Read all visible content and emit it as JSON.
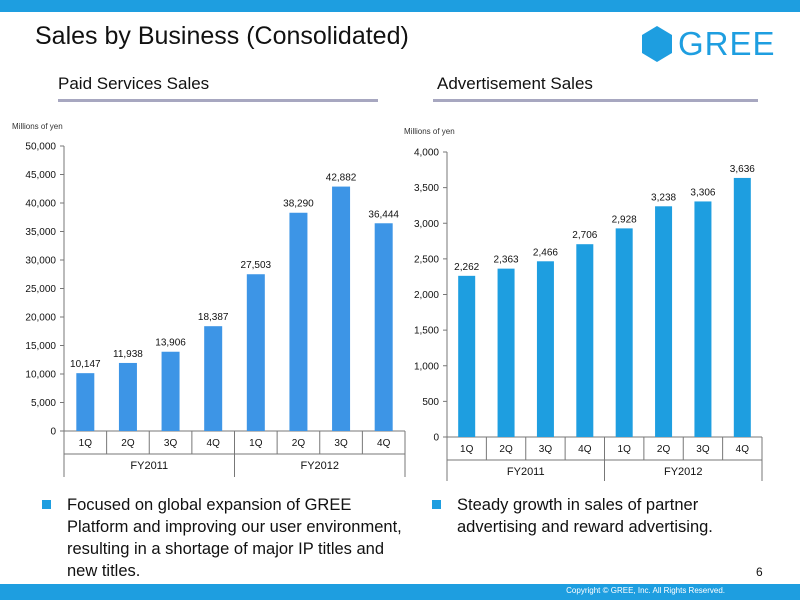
{
  "header": {
    "title": "Sales by Business (Consolidated)"
  },
  "logo": {
    "text": "GREE"
  },
  "colors": {
    "accent": "#1e9ee0",
    "bar_paid": "#3d95e6",
    "bar_ad": "#1e9ee0"
  },
  "chart_data": [
    {
      "type": "bar",
      "title": "Paid Services Sales",
      "unit_label": "Millions of yen",
      "categories": [
        "1Q",
        "2Q",
        "3Q",
        "4Q",
        "1Q",
        "2Q",
        "3Q",
        "4Q"
      ],
      "groups": [
        {
          "label": "FY2011",
          "count": 4
        },
        {
          "label": "FY2012",
          "count": 4
        }
      ],
      "values": [
        10147,
        11938,
        13906,
        18387,
        27503,
        38290,
        42882,
        36444
      ],
      "data_labels": [
        "10,147",
        "11,938",
        "13,906",
        "18,387",
        "27,503",
        "38,290",
        "42,882",
        "36,444"
      ],
      "ylim": [
        0,
        50000
      ],
      "yticks": [
        0,
        5000,
        10000,
        15000,
        20000,
        25000,
        30000,
        35000,
        40000,
        45000,
        50000
      ],
      "ytick_labels": [
        "0",
        "5,000",
        "10,000",
        "15,000",
        "20,000",
        "25,000",
        "30,000",
        "35,000",
        "40,000",
        "45,000",
        "50,000"
      ]
    },
    {
      "type": "bar",
      "title": "Advertisement Sales",
      "unit_label": "Millions of yen",
      "categories": [
        "1Q",
        "2Q",
        "3Q",
        "4Q",
        "1Q",
        "2Q",
        "3Q",
        "4Q"
      ],
      "groups": [
        {
          "label": "FY2011",
          "count": 4
        },
        {
          "label": "FY2012",
          "count": 4
        }
      ],
      "values": [
        2262,
        2363,
        2466,
        2706,
        2928,
        3238,
        3306,
        3636
      ],
      "data_labels": [
        "2,262",
        "2,363",
        "2,466",
        "2,706",
        "2,928",
        "3,238",
        "3,306",
        "3,636"
      ],
      "ylim": [
        0,
        4000
      ],
      "yticks": [
        0,
        500,
        1000,
        1500,
        2000,
        2500,
        3000,
        3500,
        4000
      ],
      "ytick_labels": [
        "0",
        "500",
        "1,000",
        "1,500",
        "2,000",
        "2,500",
        "3,000",
        "3,500",
        "4,000"
      ]
    }
  ],
  "bullets": {
    "left": "Focused on global expansion of GREE Platform and improving our user environment, resulting in a shortage of major IP titles and new titles.",
    "right": "Steady growth in sales of partner advertising and reward advertising."
  },
  "footer": {
    "page_number": "6",
    "copyright": "Copyright © GREE, Inc. All Rights Reserved."
  }
}
